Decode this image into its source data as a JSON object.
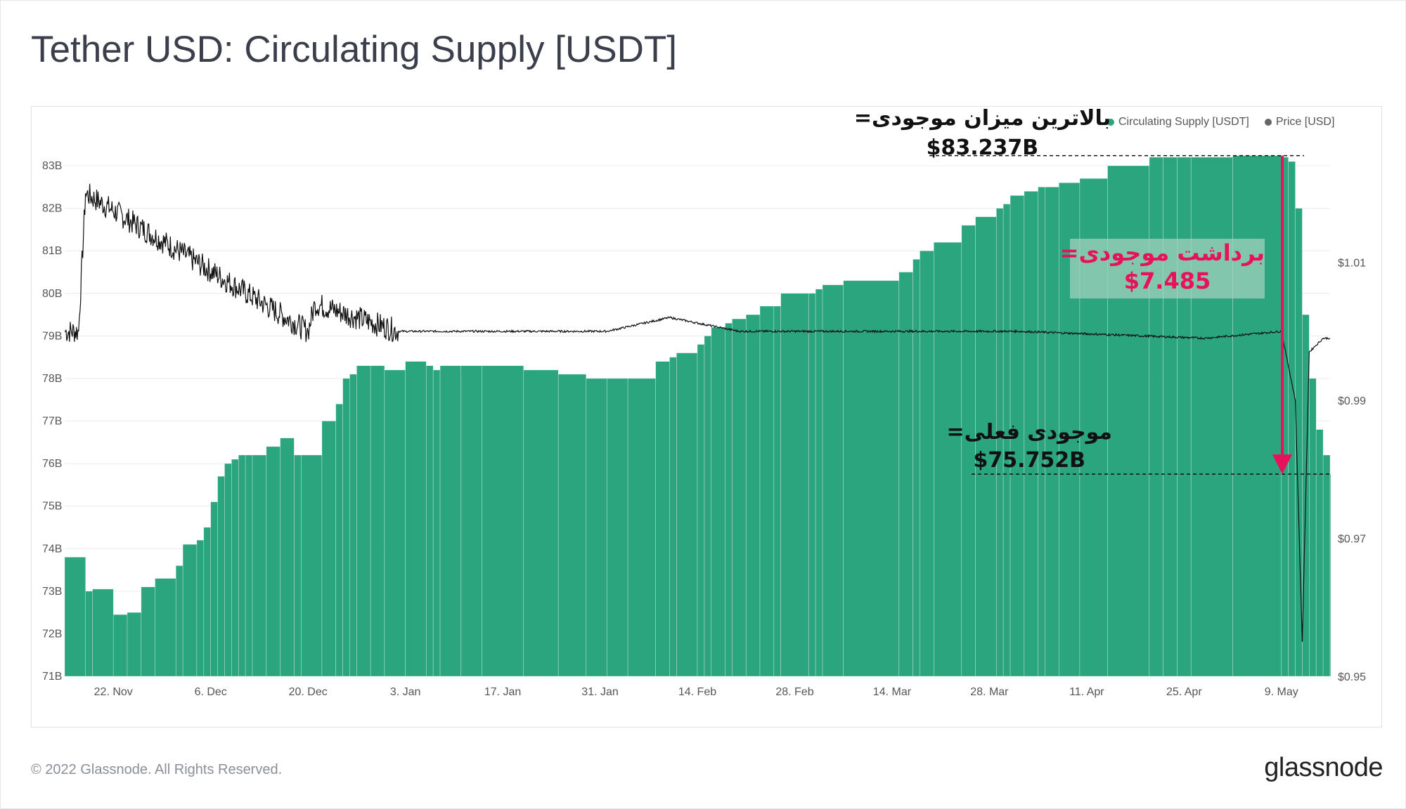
{
  "page": {
    "title": "Tether USD: Circulating Supply [USDT]",
    "footer": "© 2022 Glassnode. All Rights Reserved.",
    "brand": "glassnode"
  },
  "legend": {
    "items": [
      {
        "label": "Circulating Supply [USDT]",
        "color": "#2aa57d"
      },
      {
        "label": "Price [USD]",
        "color": "#666666"
      }
    ]
  },
  "annotations": {
    "peak_label": "بالاترین میزان موجودی=",
    "peak_value": "$83.237B",
    "drop_label": "برداشت موجودی=",
    "drop_value": "$7.485",
    "current_label": "موجودی فعلی=",
    "current_value": "$75.752B",
    "arrow_color": "#e8125c"
  },
  "chart_data": {
    "type": "bar",
    "title": "Tether USD: Circulating Supply [USDT]",
    "x_ticks": [
      "22. Nov",
      "6. Dec",
      "20. Dec",
      "3. Jan",
      "17. Jan",
      "31. Jan",
      "14. Feb",
      "28. Feb",
      "14. Mar",
      "28. Mar",
      "11. Apr",
      "25. Apr",
      "9. May"
    ],
    "x_range": [
      "2021-11-15",
      "2022-05-16"
    ],
    "ylim": [
      71,
      83
    ],
    "y_ticks": [
      "71B",
      "72B",
      "73B",
      "74B",
      "75B",
      "76B",
      "77B",
      "78B",
      "79B",
      "80B",
      "81B",
      "82B",
      "83B"
    ],
    "y2lim": [
      0.95,
      1.024
    ],
    "y2_ticks": [
      "$0.95",
      "$0.97",
      "$0.99",
      "$1.01"
    ],
    "grid": true,
    "legend_position": "top-right",
    "series": [
      {
        "name": "Circulating Supply [USDT]",
        "color": "#2aa57d",
        "axis": "left",
        "units": "billion USDT",
        "x": [
          "2021-11-15",
          "2021-11-18",
          "2021-11-19",
          "2021-11-22",
          "2021-11-24",
          "2021-11-26",
          "2021-11-28",
          "2021-12-01",
          "2021-12-02",
          "2021-12-04",
          "2021-12-05",
          "2021-12-06",
          "2021-12-07",
          "2021-12-08",
          "2021-12-09",
          "2021-12-10",
          "2021-12-11",
          "2021-12-12",
          "2021-12-14",
          "2021-12-16",
          "2021-12-18",
          "2021-12-19",
          "2021-12-22",
          "2021-12-24",
          "2021-12-25",
          "2021-12-26",
          "2021-12-27",
          "2021-12-29",
          "2021-12-31",
          "2022-01-03",
          "2022-01-06",
          "2022-01-07",
          "2022-01-08",
          "2022-01-11",
          "2022-01-14",
          "2022-01-20",
          "2022-01-25",
          "2022-01-29",
          "2022-02-01",
          "2022-02-04",
          "2022-02-08",
          "2022-02-10",
          "2022-02-11",
          "2022-02-14",
          "2022-02-15",
          "2022-02-16",
          "2022-02-18",
          "2022-02-19",
          "2022-02-21",
          "2022-02-23",
          "2022-02-25",
          "2022-02-26",
          "2022-03-02",
          "2022-03-03",
          "2022-03-04",
          "2022-03-07",
          "2022-03-15",
          "2022-03-17",
          "2022-03-18",
          "2022-03-20",
          "2022-03-24",
          "2022-03-26",
          "2022-03-29",
          "2022-03-30",
          "2022-03-31",
          "2022-04-02",
          "2022-04-04",
          "2022-04-05",
          "2022-04-07",
          "2022-04-10",
          "2022-04-14",
          "2022-04-20",
          "2022-04-22",
          "2022-04-24",
          "2022-04-26",
          "2022-05-02",
          "2022-05-09",
          "2022-05-10",
          "2022-05-11",
          "2022-05-12",
          "2022-05-13",
          "2022-05-14",
          "2022-05-15",
          "2022-05-16"
        ],
        "values": [
          73.8,
          73.0,
          73.05,
          72.45,
          72.5,
          73.1,
          73.3,
          73.6,
          74.1,
          74.2,
          74.5,
          75.1,
          75.7,
          76.0,
          76.1,
          76.2,
          76.2,
          76.2,
          76.4,
          76.6,
          76.2,
          76.2,
          77.0,
          77.4,
          78.0,
          78.1,
          78.3,
          78.3,
          78.2,
          78.4,
          78.3,
          78.2,
          78.3,
          78.3,
          78.3,
          78.2,
          78.1,
          78.0,
          78.0,
          78.0,
          78.4,
          78.5,
          78.6,
          78.8,
          79.0,
          79.2,
          79.3,
          79.4,
          79.5,
          79.7,
          79.7,
          80.0,
          80.0,
          80.1,
          80.2,
          80.3,
          80.5,
          80.8,
          81.0,
          81.2,
          81.6,
          81.8,
          82.0,
          82.1,
          82.3,
          82.4,
          82.5,
          82.5,
          82.6,
          82.7,
          83.0,
          83.2,
          83.2,
          83.2,
          83.2,
          83.237,
          83.2,
          83.1,
          82.0,
          79.5,
          78.0,
          76.8,
          76.2,
          75.752
        ]
      },
      {
        "name": "Price [USD]",
        "color": "#111111",
        "axis": "right",
        "units": "USD",
        "x": [
          "2021-11-15",
          "2021-11-17",
          "2021-11-18",
          "2021-12-20",
          "2021-12-21",
          "2022-01-02",
          "2022-01-03",
          "2022-02-01",
          "2022-02-10",
          "2022-02-20",
          "2022-03-01",
          "2022-04-01",
          "2022-04-28",
          "2022-05-09",
          "2022-05-10",
          "2022-05-11",
          "2022-05-12",
          "2022-05-13",
          "2022-05-14",
          "2022-05-15",
          "2022-05-16"
        ],
        "values": [
          1.0,
          1.0,
          1.02,
          1.0,
          1.004,
          1.0,
          1.0,
          1.0,
          1.002,
          1.0,
          1.0,
          1.0,
          0.999,
          1.0,
          0.995,
          0.99,
          0.955,
          0.997,
          0.998,
          0.999,
          0.999
        ]
      }
    ]
  }
}
